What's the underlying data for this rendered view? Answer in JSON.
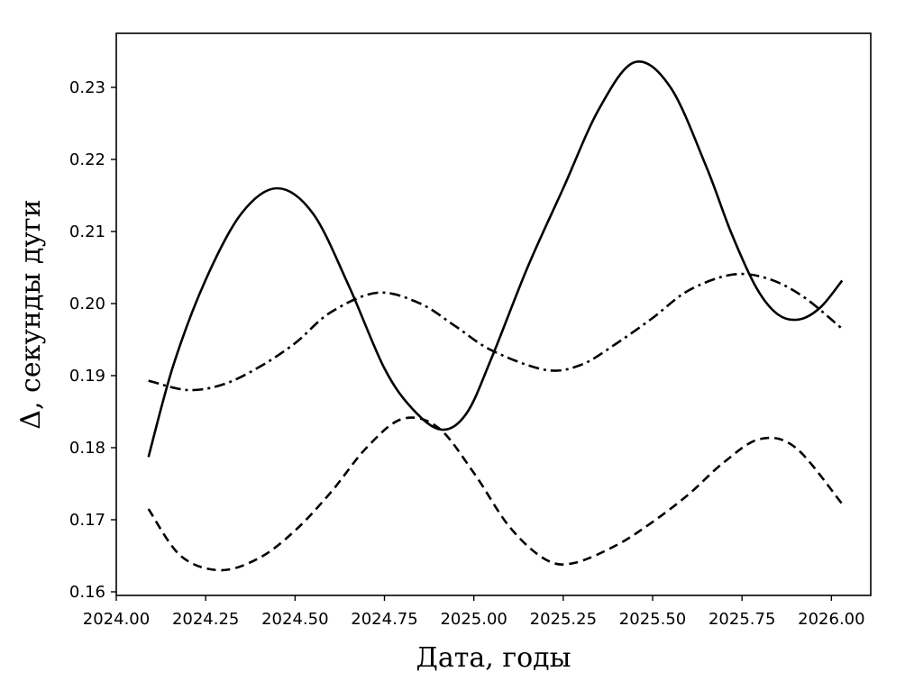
{
  "chart_data": {
    "type": "line",
    "title": "",
    "xlabel": "Дата, годы",
    "ylabel": "Δ, секунды дуги",
    "xlim": [
      2024.0,
      2026.11
    ],
    "ylim": [
      0.1595,
      0.2375
    ],
    "x_ticks": [
      2024.0,
      2024.25,
      2024.5,
      2024.75,
      2025.0,
      2025.25,
      2025.5,
      2025.75,
      2026.0
    ],
    "x_tick_labels": [
      "2024.00",
      "2024.25",
      "2024.50",
      "2024.75",
      "2025.00",
      "2025.25",
      "2025.50",
      "2025.75",
      "2026.00"
    ],
    "y_ticks": [
      0.16,
      0.17,
      0.18,
      0.19,
      0.2,
      0.21,
      0.22,
      0.23
    ],
    "y_tick_labels": [
      "0.16",
      "0.17",
      "0.18",
      "0.19",
      "0.20",
      "0.21",
      "0.22",
      "0.23"
    ],
    "grid": false,
    "legend": false,
    "series": [
      {
        "style": "solid",
        "color": "#000000",
        "x": [
          2024.09,
          2024.16,
          2024.25,
          2024.35,
          2024.45,
          2024.55,
          2024.65,
          2024.75,
          2024.83,
          2024.91,
          2024.98,
          2025.05,
          2025.15,
          2025.25,
          2025.35,
          2025.45,
          2025.55,
          2025.65,
          2025.72,
          2025.79,
          2025.85,
          2025.91,
          2025.97,
          2026.03
        ],
        "y": [
          0.1787,
          0.1915,
          0.2033,
          0.2125,
          0.216,
          0.2125,
          0.2025,
          0.191,
          0.1853,
          0.1825,
          0.1848,
          0.1925,
          0.205,
          0.216,
          0.227,
          0.2335,
          0.23,
          0.219,
          0.2098,
          0.2022,
          0.1985,
          0.1978,
          0.1995,
          0.2032
        ]
      },
      {
        "style": "dashdot",
        "color": "#000000",
        "x": [
          2024.09,
          2024.2,
          2024.3,
          2024.4,
          2024.5,
          2024.6,
          2024.73,
          2024.85,
          2024.95,
          2025.05,
          2025.2,
          2025.3,
          2025.4,
          2025.5,
          2025.6,
          2025.72,
          2025.82,
          2025.92,
          2026.03
        ],
        "y": [
          0.1893,
          0.188,
          0.1888,
          0.1912,
          0.1945,
          0.1988,
          0.2015,
          0.2,
          0.1968,
          0.1935,
          0.1908,
          0.1915,
          0.1945,
          0.198,
          0.2018,
          0.204,
          0.2035,
          0.201,
          0.1965
        ]
      },
      {
        "style": "dashed",
        "color": "#000000",
        "x": [
          2024.09,
          2024.18,
          2024.29,
          2024.4,
          2024.5,
          2024.6,
          2024.7,
          2024.8,
          2024.9,
          2025.0,
          2025.1,
          2025.2,
          2025.28,
          2025.4,
          2025.5,
          2025.6,
          2025.7,
          2025.8,
          2025.9,
          2026.03
        ],
        "y": [
          0.1715,
          0.165,
          0.163,
          0.1647,
          0.1685,
          0.1738,
          0.18,
          0.184,
          0.1828,
          0.1765,
          0.169,
          0.1645,
          0.164,
          0.1665,
          0.1697,
          0.1735,
          0.178,
          0.1812,
          0.18,
          0.1722
        ]
      }
    ]
  }
}
